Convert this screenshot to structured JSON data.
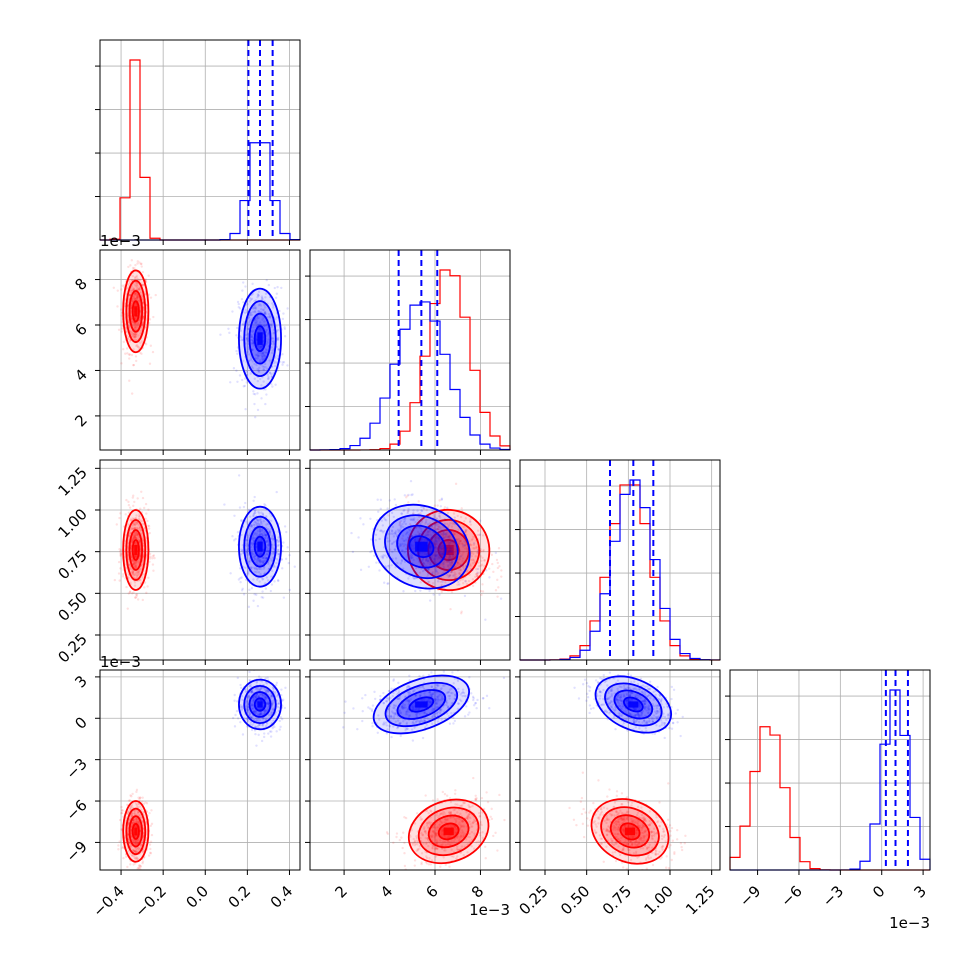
{
  "chart_data": {
    "type": "corner",
    "grid": true,
    "colors": {
      "series_a": "#ff0000",
      "series_b": "#0000ff"
    },
    "parameters": [
      {
        "ticks": [
          "−0.4",
          "−0.2",
          "0.0",
          "0.2",
          "0.4"
        ],
        "tick_values": [
          -0.4,
          -0.2,
          0.0,
          0.2,
          0.4
        ],
        "range": [
          -0.5,
          0.45
        ],
        "exponent": ""
      },
      {
        "ticks": [
          "2",
          "4",
          "6",
          "8"
        ],
        "tick_values": [
          2,
          4,
          6,
          8
        ],
        "range": [
          0.5,
          9.3
        ],
        "y_ticks": [
          "2",
          "4",
          "6",
          "8"
        ],
        "exponent": "1e−3"
      },
      {
        "ticks": [
          "0.25",
          "0.50",
          "0.75",
          "1.00",
          "1.25"
        ],
        "tick_values": [
          0.25,
          0.5,
          0.75,
          1.0,
          1.25
        ],
        "range": [
          0.1,
          1.3
        ],
        "exponent": "1e−3"
      },
      {
        "ticks": [
          "−9",
          "−6",
          "−3",
          "0",
          "3"
        ],
        "tick_values": [
          -9,
          -6,
          -3,
          0,
          3
        ],
        "range": [
          -11,
          3.5
        ],
        "exponent": "1e−3"
      }
    ],
    "series": [
      {
        "color": "#ff0000",
        "mean": [
          -0.33,
          6.6,
          0.76,
          -8.2
        ],
        "std": [
          0.03,
          0.9,
          0.12,
          1.1
        ]
      },
      {
        "color": "#0000ff",
        "mean": [
          0.26,
          5.4,
          0.78,
          1.0
        ],
        "std": [
          0.05,
          1.1,
          0.12,
          0.9
        ]
      }
    ],
    "quantile_lines": [
      {
        "param": 0,
        "values": [
          0.205,
          0.26,
          0.32
        ]
      },
      {
        "param": 1,
        "values": [
          4.4,
          5.4,
          6.1
        ]
      },
      {
        "param": 2,
        "values": [
          0.64,
          0.78,
          0.9
        ]
      },
      {
        "param": 3,
        "values": [
          0.3,
          1.0,
          1.9
        ]
      }
    ]
  }
}
